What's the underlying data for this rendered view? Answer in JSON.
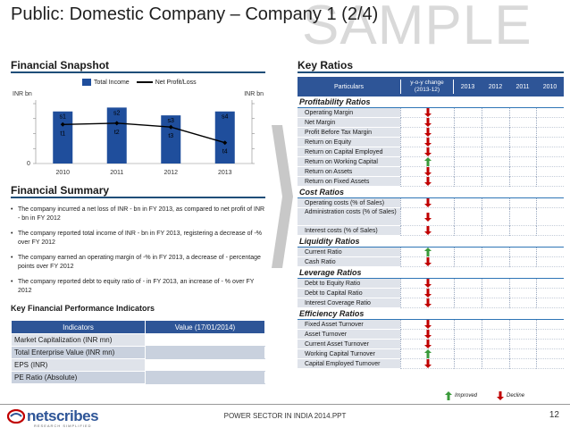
{
  "header": {
    "title": "Public: Domestic Company – Company 1 (2/4)",
    "watermark": "SAMPLE"
  },
  "financial_snapshot": {
    "heading": "Financial Snapshot",
    "unit_left": "INR bn",
    "unit_right": "INR bn",
    "legend_bar": "Total Income",
    "legend_line": "Net Profit/Loss",
    "chart_data": {
      "type": "bar",
      "categories": [
        "2010",
        "2011",
        "2012",
        "2013"
      ],
      "series": [
        {
          "name": "Total Income",
          "values": [
            4.0,
            4.3,
            3.7,
            4.0
          ],
          "labels": [
            "s1",
            "s2",
            "s3",
            "s4"
          ]
        },
        {
          "name": "Net Profit/Loss",
          "values": [
            3.0,
            3.1,
            2.8,
            1.6
          ],
          "labels": [
            "t1",
            "t2",
            "t3",
            "t4"
          ]
        }
      ],
      "ylim": [
        0,
        4.6
      ],
      "y_tick_labels": [
        "0"
      ],
      "grid": false,
      "legend_placement": "top",
      "colors": {
        "bar": "#1f4e9c",
        "line": "#000000"
      }
    }
  },
  "financial_summary": {
    "heading": "Financial Summary",
    "bullets": [
      "The company incurred a net loss of INR - bn in FY 2013, as compared to net profit of INR - bn in FY 2012",
      "The company reported total income of INR - bn in FY 2013, registering a decrease of -% over FY 2012",
      "The company earned an operating margin of -% in FY 2013, a decrease of - percentage points over FY 2012",
      "The company reported debt to equity ratio of - in FY 2013, an increase of - % over FY 2012"
    ]
  },
  "kpi": {
    "heading": "Key Financial Performance Indicators",
    "col_indicator": "Indicators",
    "col_value": "Value (17/01/2014)",
    "rows": [
      "Market Capitalization (INR mn)",
      "Total Enterprise Value (INR mn)",
      "EPS (INR)",
      "PE Ratio (Absolute)"
    ]
  },
  "key_ratios": {
    "heading": "Key Ratios",
    "columns": [
      "Particulars",
      "y-o-y change (2013-12)",
      "2013",
      "2012",
      "2011",
      "2010"
    ],
    "groups": [
      {
        "name": "Profitability Ratios",
        "rows": [
          {
            "label": "Operating Margin",
            "trend": "decline"
          },
          {
            "label": "Net Margin",
            "trend": "decline"
          },
          {
            "label": "Profit Before Tax Margin",
            "trend": "decline"
          },
          {
            "label": "Return on Equity",
            "trend": "decline"
          },
          {
            "label": "Return on Capital Employed",
            "trend": "decline"
          },
          {
            "label": "Return on Working Capital",
            "trend": "improved"
          },
          {
            "label": "Return on Assets",
            "trend": "decline"
          },
          {
            "label": "Return on Fixed Assets",
            "trend": "decline"
          }
        ]
      },
      {
        "name": "Cost Ratios",
        "rows": [
          {
            "label": "Operating costs (% of Sales)",
            "trend": "decline"
          },
          {
            "label": "Administration costs (% of Sales)",
            "trend": "decline",
            "tall": true
          },
          {
            "label": "Interest costs (% of Sales)",
            "trend": "decline"
          }
        ]
      },
      {
        "name": "Liquidity Ratios",
        "rows": [
          {
            "label": "Current Ratio",
            "trend": "improved"
          },
          {
            "label": "Cash Ratio",
            "trend": "decline"
          }
        ]
      },
      {
        "name": "Leverage Ratios",
        "rows": [
          {
            "label": "Debt to Equity Ratio",
            "trend": "decline"
          },
          {
            "label": "Debt to Capital Ratio",
            "trend": "decline"
          },
          {
            "label": "Interest Coverage Ratio",
            "trend": "decline"
          }
        ]
      },
      {
        "name": "Efficiency Ratios",
        "rows": [
          {
            "label": "Fixed Asset Turnover",
            "trend": "decline"
          },
          {
            "label": "Asset Turnover",
            "trend": "decline"
          },
          {
            "label": "Current Asset Turnover",
            "trend": "decline"
          },
          {
            "label": "Working Capital Turnover",
            "trend": "improved"
          },
          {
            "label": "Capital Employed Turnover",
            "trend": "decline"
          }
        ]
      }
    ],
    "legend_improved": "Improved",
    "legend_decline": "Decline",
    "colors": {
      "improved": "#3a9a3a",
      "decline": "#c00000",
      "header": "#2e5597"
    }
  },
  "footer": {
    "logo_text": "netscribes",
    "logo_tagline": "RESEARCH SIMPLIFIED",
    "center_text": "POWER SECTOR IN INDIA 2014.PPT",
    "page_number": "12"
  }
}
